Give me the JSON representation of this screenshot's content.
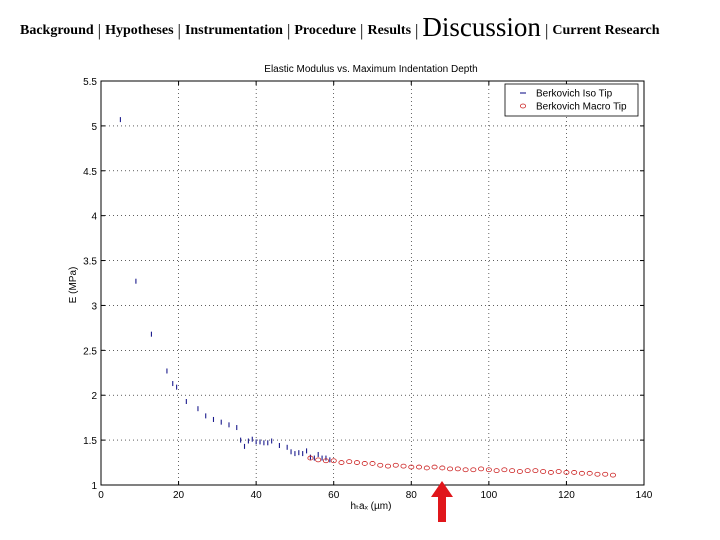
{
  "nav": {
    "items": [
      "Background",
      "Hypotheses",
      "Instrumentation",
      "Procedure",
      "Results",
      "Discussion",
      "Current Research"
    ],
    "current_index": 5,
    "separator": "|"
  },
  "chart_data": {
    "type": "scatter",
    "title": "Elastic Modulus vs. Maximum Indentation Depth",
    "xlabel": "hₜaₓ (µm)",
    "ylabel": "E (MPa)",
    "xlim": [
      0,
      140
    ],
    "ylim": [
      1,
      5.5
    ],
    "xticks": [
      "0",
      "20",
      "40",
      "60",
      "80",
      "100",
      "120",
      "140"
    ],
    "yticks": [
      "1",
      "1.5",
      "2",
      "2.5",
      "3",
      "3.5",
      "4",
      "4.5",
      "5",
      "5.5"
    ],
    "grid": true,
    "legend_position": "top-right",
    "series": [
      {
        "name": "Berkovich Iso Tip",
        "marker": "tick",
        "color": "#1a1a8c",
        "x": [
          5,
          9,
          13,
          17,
          18.5,
          19.5,
          22,
          25,
          27,
          29,
          31,
          33,
          35,
          36,
          37,
          38,
          39,
          40,
          41,
          42,
          43,
          44,
          46,
          48,
          49,
          50,
          51,
          52,
          53,
          54,
          55,
          56,
          57,
          58,
          59
        ],
        "y": [
          5.07,
          3.27,
          2.68,
          2.27,
          2.13,
          2.09,
          1.93,
          1.85,
          1.77,
          1.73,
          1.7,
          1.67,
          1.64,
          1.5,
          1.43,
          1.49,
          1.51,
          1.48,
          1.48,
          1.47,
          1.47,
          1.49,
          1.44,
          1.42,
          1.37,
          1.35,
          1.36,
          1.35,
          1.38,
          1.31,
          1.3,
          1.34,
          1.3,
          1.3,
          1.28
        ]
      },
      {
        "name": "Berkovich Macro Tip",
        "marker": "circle",
        "color": "#cc2222",
        "x": [
          54,
          56,
          58,
          60,
          62,
          64,
          66,
          68,
          70,
          72,
          74,
          76,
          78,
          80,
          82,
          84,
          86,
          88,
          90,
          92,
          94,
          96,
          98,
          100,
          102,
          104,
          106,
          108,
          110,
          112,
          114,
          116,
          118,
          120,
          122,
          124,
          126,
          128,
          130,
          132
        ],
        "y": [
          1.3,
          1.28,
          1.27,
          1.27,
          1.25,
          1.26,
          1.25,
          1.24,
          1.24,
          1.22,
          1.21,
          1.22,
          1.21,
          1.2,
          1.2,
          1.19,
          1.2,
          1.19,
          1.18,
          1.18,
          1.17,
          1.17,
          1.18,
          1.17,
          1.16,
          1.17,
          1.16,
          1.15,
          1.16,
          1.16,
          1.15,
          1.14,
          1.15,
          1.14,
          1.14,
          1.13,
          1.13,
          1.12,
          1.12,
          1.11
        ]
      }
    ]
  }
}
